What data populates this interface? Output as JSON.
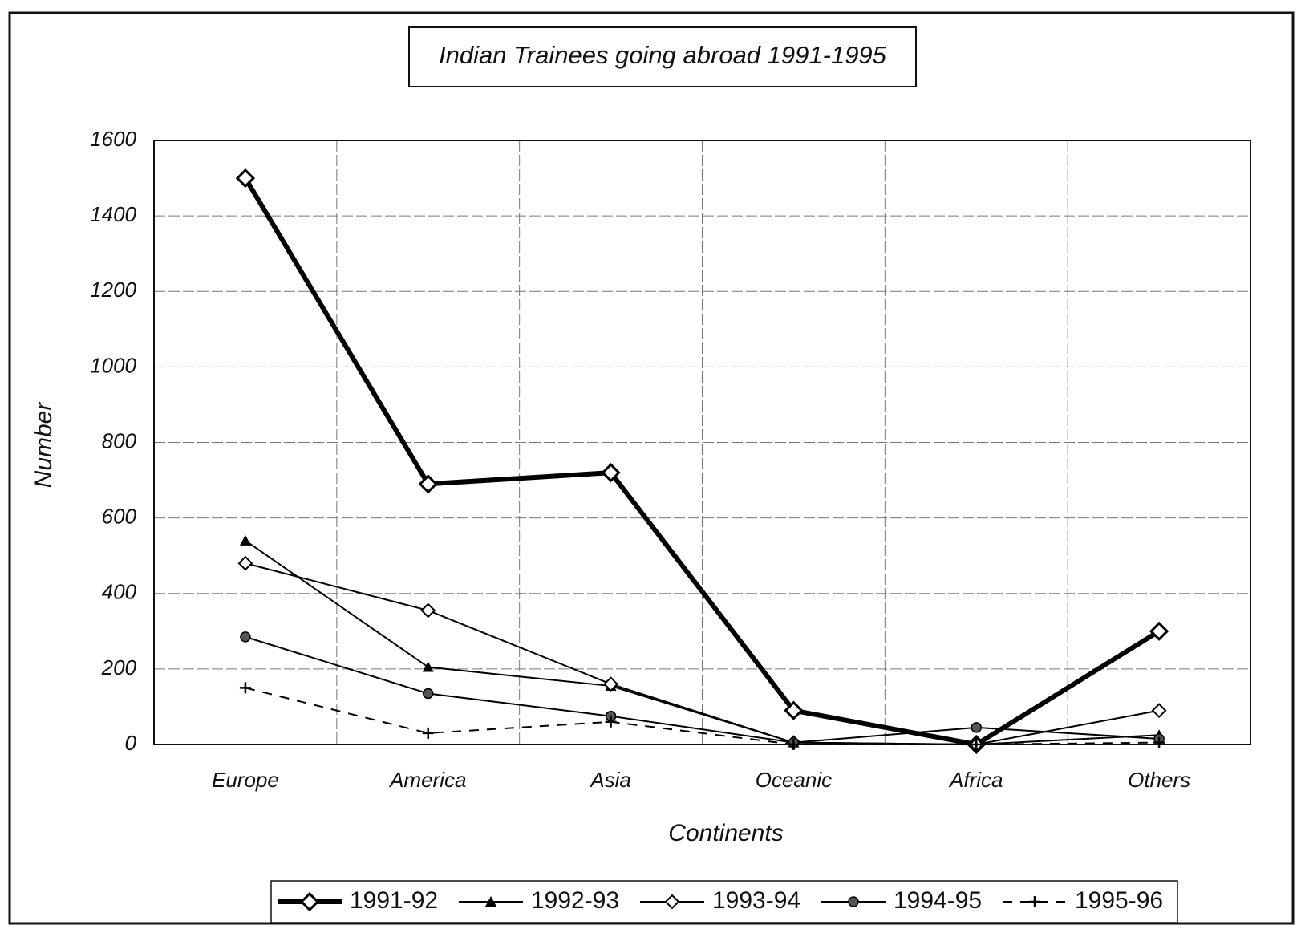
{
  "chart_data": {
    "type": "line",
    "title": "Indian Trainees going abroad 1991-1995",
    "xlabel": "Continents",
    "ylabel": "Number",
    "categories": [
      "Europe",
      "America",
      "Asia",
      "Oceanic",
      "Africa",
      "Others"
    ],
    "ylim": [
      0,
      1600
    ],
    "yticks": [
      0,
      200,
      400,
      600,
      800,
      1000,
      1200,
      1400,
      1600
    ],
    "grid": true,
    "legend": "bottom",
    "series": [
      {
        "name": "1991-92",
        "color": "#000000",
        "marker": "diamond",
        "line_style": "thick",
        "values": [
          1500,
          690,
          720,
          90,
          0,
          300
        ]
      },
      {
        "name": "1992-93",
        "color": "#000000",
        "marker": "triangle",
        "line_style": "solid",
        "values": [
          540,
          205,
          155,
          5,
          0,
          25
        ]
      },
      {
        "name": "1993-94",
        "color": "#000000",
        "marker": "diamond",
        "line_style": "solid",
        "values": [
          480,
          355,
          160,
          5,
          0,
          90
        ]
      },
      {
        "name": "1994-95",
        "color": "#000000",
        "marker": "circle-x",
        "line_style": "solid",
        "values": [
          285,
          135,
          75,
          5,
          45,
          15
        ]
      },
      {
        "name": "1995-96",
        "color": "#000000",
        "marker": "plus",
        "line_style": "dashed",
        "values": [
          150,
          30,
          60,
          0,
          0,
          5
        ]
      }
    ]
  }
}
